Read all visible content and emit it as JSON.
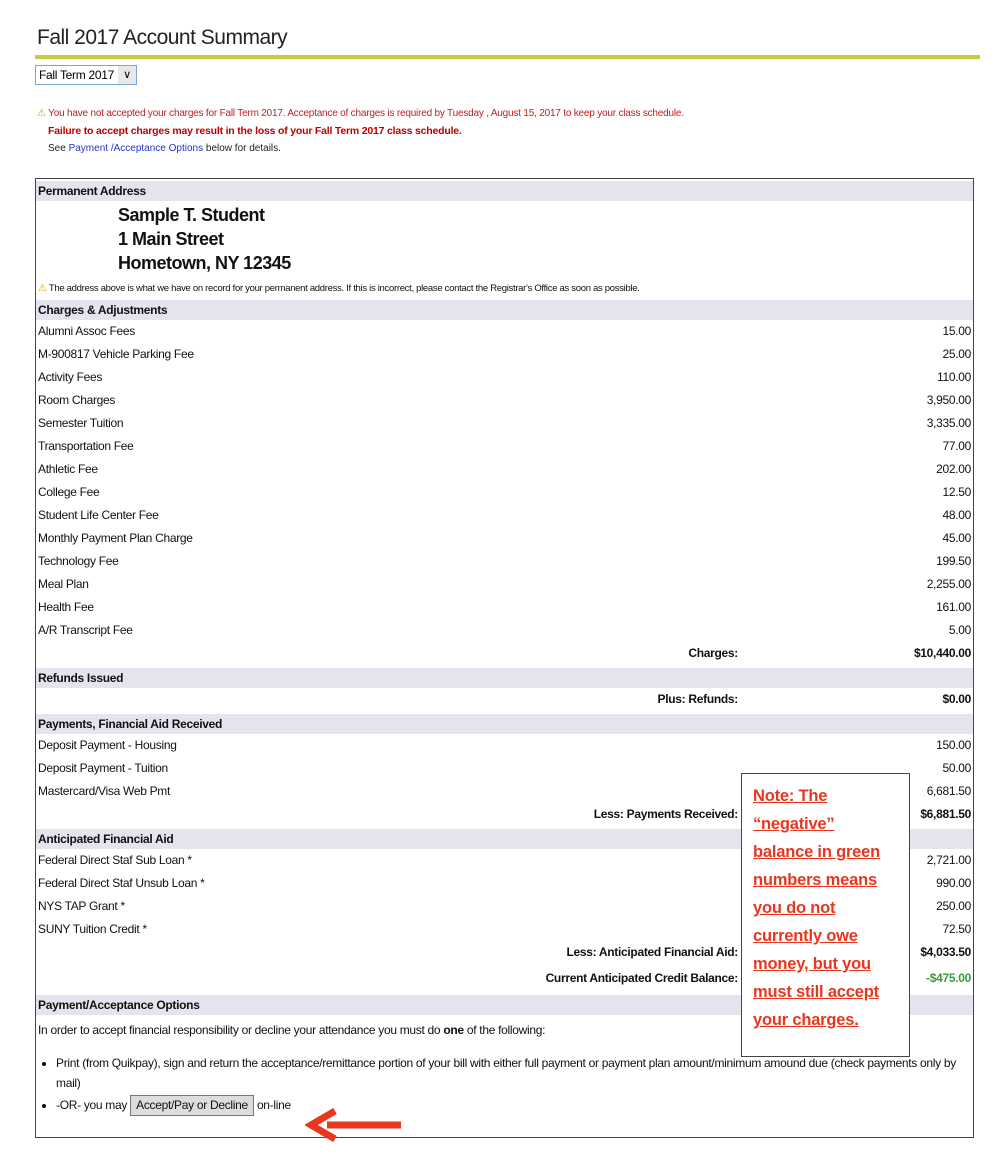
{
  "title": "Fall 2017 Account Summary",
  "term_select": {
    "value": "Fall Term 2017"
  },
  "warnings": {
    "line1": "You have not accepted your charges for Fall Term 2017. Acceptance of charges is required by Tuesday , August 15, 2017 to keep your class schedule.",
    "line2": "Failure to accept charges may result in the loss of your Fall Term 2017 class schedule.",
    "see": "See",
    "link": "Payment /Acceptance Options",
    "after": "below for details."
  },
  "address": {
    "header": "Permanent Address",
    "name": "Sample T. Student",
    "street": "1 Main Street",
    "city": "Hometown, NY 12345",
    "note": "The address above is what we have on record for your permanent address. If this is incorrect, please contact the Registrar's Office as soon as possible."
  },
  "charges": {
    "header": "Charges & Adjustments",
    "items": [
      {
        "label": "Alumni Assoc Fees",
        "amount": "15.00"
      },
      {
        "label": "M-900817 Vehicle Parking Fee",
        "amount": "25.00"
      },
      {
        "label": "Activity Fees",
        "amount": "110.00"
      },
      {
        "label": "Room Charges",
        "amount": "3,950.00"
      },
      {
        "label": "Semester Tuition",
        "amount": "3,335.00"
      },
      {
        "label": "Transportation Fee",
        "amount": "77.00"
      },
      {
        "label": "Athletic Fee",
        "amount": "202.00"
      },
      {
        "label": "College Fee",
        "amount": "12.50"
      },
      {
        "label": "Student Life Center Fee",
        "amount": "48.00"
      },
      {
        "label": "Monthly Payment Plan Charge",
        "amount": "45.00"
      },
      {
        "label": "Technology Fee",
        "amount": "199.50"
      },
      {
        "label": "Meal Plan",
        "amount": "2,255.00"
      },
      {
        "label": "Health Fee",
        "amount": "161.00"
      },
      {
        "label": "A/R Transcript Fee",
        "amount": "5.00"
      }
    ],
    "total_label": "Charges:",
    "total": "$10,440.00"
  },
  "refunds": {
    "header": "Refunds Issued",
    "total_label": "Plus: Refunds:",
    "total": "$0.00"
  },
  "payments": {
    "header": "Payments, Financial Aid Received",
    "items": [
      {
        "label": "Deposit Payment - Housing",
        "amount": "150.00"
      },
      {
        "label": "Deposit Payment - Tuition",
        "amount": "50.00"
      },
      {
        "label": "Mastercard/Visa Web Pmt",
        "amount": "6,681.50"
      }
    ],
    "total_label": "Less: Payments Received:",
    "total": "$6,881.50"
  },
  "aid": {
    "header": "Anticipated Financial Aid",
    "items": [
      {
        "label": "Federal Direct Staf Sub Loan *",
        "amount": "2,721.00"
      },
      {
        "label": "Federal Direct Staf Unsub Loan *",
        "amount": "990.00"
      },
      {
        "label": "NYS TAP Grant *",
        "amount": "250.00"
      },
      {
        "label": "SUNY Tuition Credit *",
        "amount": "72.50"
      }
    ],
    "total_label": "Less: Anticipated Financial Aid:",
    "total": "$4,033.50",
    "balance_label": "Current Anticipated Credit Balance:",
    "balance": "-$475.00"
  },
  "options": {
    "header": "Payment/Acceptance Options",
    "intro_pre": "In order to accept financial responsibility or decline your attendance you must do",
    "intro_bold": "one",
    "intro_post": "of the following:",
    "bullet1": "Print (from Quikpay), sign and return the acceptance/remittance portion of your bill with either full payment or payment plan amount/minimum amound due (check payments only by mail)",
    "bullet2_pre": "-OR- you may",
    "button": "Accept/Pay or Decline",
    "bullet2_post": "on-line"
  },
  "note": "Note:  The “negative” balance in green numbers means you do not currently owe money, but you must still accept your charges.",
  "colors": {
    "accent_rule": "#c8cc3a",
    "credit": "#3a9a3a",
    "note": "#e8371e"
  }
}
